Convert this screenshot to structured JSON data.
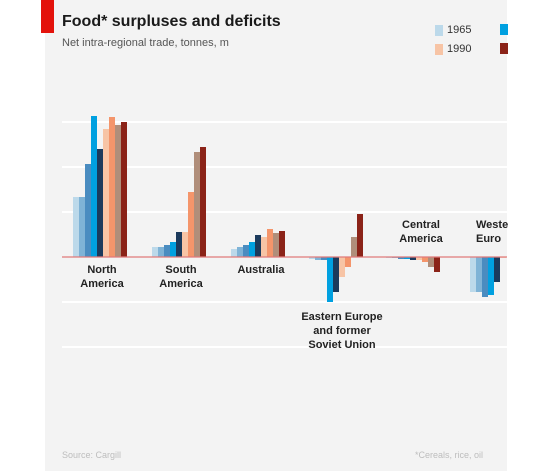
{
  "chart_data": {
    "type": "bar",
    "title": "Food* surpluses and deficits",
    "subtitle": "Net intra-regional trade, tonnes, m",
    "categories": [
      "North America",
      "South America",
      "Australia",
      "Eastern Europe and former Soviet Union",
      "Central America",
      "Western Europe"
    ],
    "category_labels": [
      [
        "North",
        "America"
      ],
      [
        "South",
        "America"
      ],
      [
        "Australia"
      ],
      [
        "Eastern Europe",
        "and former",
        "Soviet Union"
      ],
      [
        "Central",
        "America"
      ],
      [
        "Weste",
        "Euro"
      ]
    ],
    "series": [
      {
        "name": "1965",
        "color": "#bcd9ea",
        "values": [
          60,
          10,
          8,
          -2,
          -1,
          -35
        ]
      },
      {
        "name": "",
        "color": "#7fb3d6",
        "values": [
          60,
          10,
          10,
          -3,
          -1,
          -35
        ]
      },
      {
        "name": "",
        "color": "#4a8cc0",
        "values": [
          93,
          12,
          12,
          -3,
          -2,
          -40
        ]
      },
      {
        "name": "",
        "color": "#00a0e0",
        "values": [
          141,
          15,
          15,
          -45,
          -2,
          -38
        ]
      },
      {
        "name": "",
        "color": "#1b3a5c",
        "values": [
          108,
          25,
          22,
          -35,
          -3,
          -25
        ]
      },
      {
        "name": "1990",
        "color": "#f7c4a5",
        "values": [
          128,
          25,
          20,
          -20,
          -3,
          0
        ]
      },
      {
        "name": "",
        "color": "#f4956b",
        "values": [
          140,
          65,
          28,
          -10,
          -5,
          0
        ]
      },
      {
        "name": "",
        "color": "#b08e7a",
        "values": [
          132,
          105,
          24,
          20,
          -10,
          0
        ]
      },
      {
        "name": "",
        "color": "#8b2318",
        "values": [
          135,
          110,
          26,
          43,
          -15,
          0
        ]
      }
    ],
    "legend": [
      {
        "label": "1965",
        "color": "#bcd9ea"
      },
      {
        "label": "",
        "color": "#00a0e0"
      },
      {
        "label": "1990",
        "color": "#f7c4a5"
      },
      {
        "label": "",
        "color": "#8b2318"
      }
    ],
    "legend_placement": "top-right",
    "grid": true,
    "ylim": [
      -90,
      185
    ],
    "source": "Source: Cargill",
    "footnote": "*Cereals, rice, oil"
  },
  "colors": {
    "accent": "#e3120b",
    "zero_line": "#e07a7a",
    "gridline": "#ffffff"
  }
}
